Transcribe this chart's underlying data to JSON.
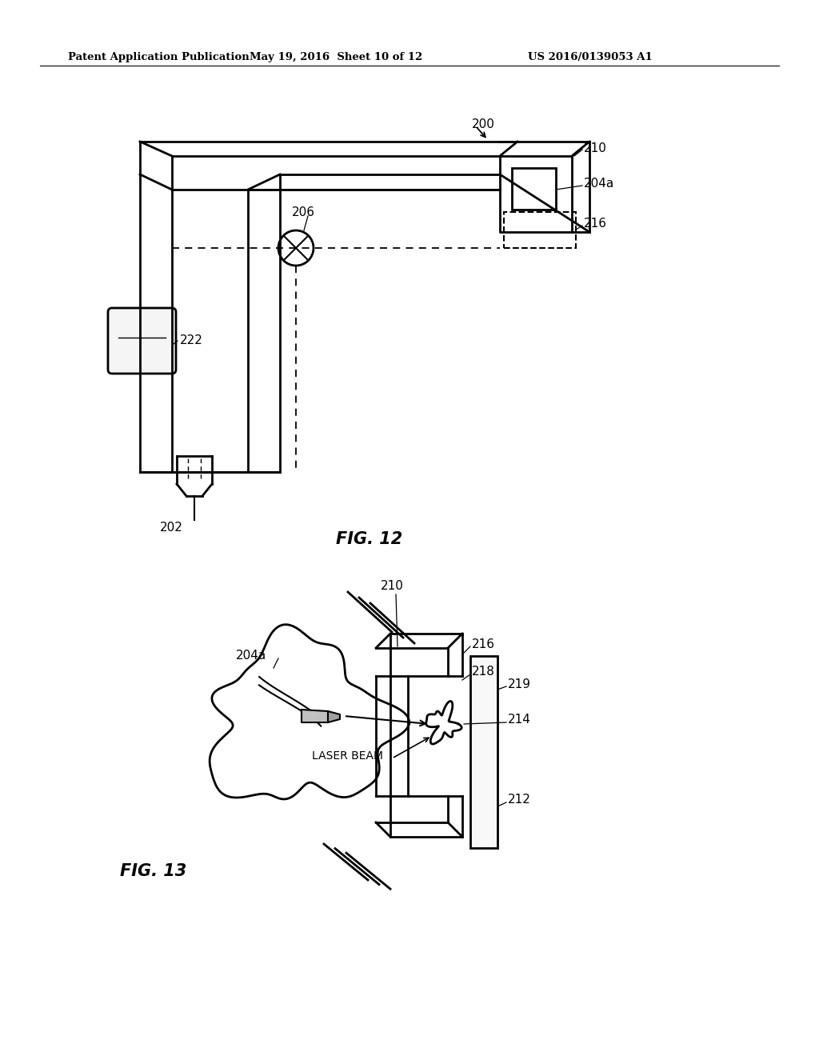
{
  "header_left": "Patent Application Publication",
  "header_center": "May 19, 2016  Sheet 10 of 12",
  "header_right": "US 2016/0139053 A1",
  "fig12_label": "FIG. 12",
  "fig13_label": "FIG. 13",
  "bg_color": "#ffffff",
  "line_color": "#000000"
}
